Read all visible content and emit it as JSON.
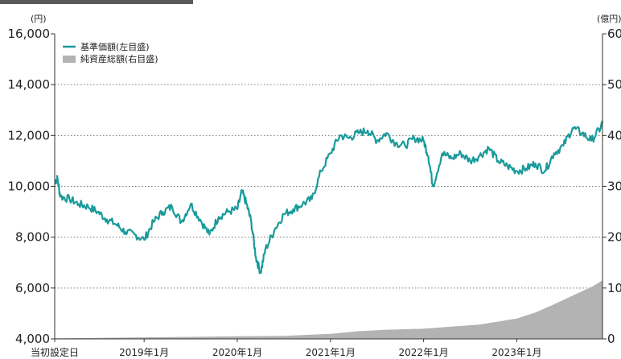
{
  "chart_data": {
    "type": "line",
    "left_axis": {
      "unit": "(円)",
      "ylim": [
        4000,
        16000
      ],
      "ticks": [
        4000,
        6000,
        8000,
        10000,
        12000,
        14000,
        16000
      ],
      "tick_labels": [
        "4,000",
        "6,000",
        "8,000",
        "10,000",
        "12,000",
        "14,000",
        "16,000"
      ]
    },
    "right_axis": {
      "unit": "(億円)",
      "ylim": [
        0,
        60
      ],
      "ticks": [
        0,
        10,
        20,
        30,
        40,
        50,
        60
      ],
      "tick_labels": [
        "0",
        "10",
        "20",
        "30",
        "40",
        "50",
        "60"
      ]
    },
    "x_tick_labels": [
      "当初設定日",
      "2019年1月",
      "2020年1月",
      "2021年1月",
      "2022年1月",
      "2023年1月"
    ],
    "x_tick_positions": [
      2018.04,
      2019.0,
      2020.0,
      2021.0,
      2022.0,
      2023.0
    ],
    "x_range": [
      2018.04,
      2023.92
    ],
    "legend": {
      "placement": "top-left",
      "entries": [
        {
          "label": "基準価額(左目盛)",
          "color": "#1a9a9a",
          "kind": "line"
        },
        {
          "label": "純資産総額(右目盛)",
          "color": "#b3b3b3",
          "kind": "area"
        }
      ]
    },
    "grid": "horizontal-dotted",
    "series": [
      {
        "name": "基準価額(左目盛)",
        "axis": "left",
        "type": "line",
        "color": "#1a9a9a",
        "x": [
          2018.04,
          2018.07,
          2018.1,
          2018.2,
          2018.3,
          2018.4,
          2018.5,
          2018.6,
          2018.7,
          2018.8,
          2018.9,
          2019.0,
          2019.1,
          2019.2,
          2019.3,
          2019.4,
          2019.5,
          2019.6,
          2019.7,
          2019.8,
          2019.9,
          2020.0,
          2020.05,
          2020.1,
          2020.15,
          2020.2,
          2020.25,
          2020.3,
          2020.4,
          2020.5,
          2020.6,
          2020.7,
          2020.8,
          2020.9,
          2021.0,
          2021.1,
          2021.2,
          2021.3,
          2021.4,
          2021.5,
          2021.6,
          2021.7,
          2021.8,
          2021.9,
          2022.0,
          2022.05,
          2022.1,
          2022.2,
          2022.3,
          2022.4,
          2022.5,
          2022.6,
          2022.7,
          2022.8,
          2022.9,
          2023.0,
          2023.1,
          2023.2,
          2023.3,
          2023.4,
          2023.5,
          2023.6,
          2023.7,
          2023.8,
          2023.9,
          2023.92
        ],
        "y": [
          10200,
          10300,
          9600,
          9500,
          9300,
          9200,
          9000,
          8700,
          8500,
          8200,
          8100,
          7900,
          8600,
          9000,
          9200,
          8600,
          9300,
          8700,
          8100,
          8800,
          9000,
          9100,
          9800,
          9300,
          8600,
          7200,
          6600,
          7500,
          8300,
          8900,
          9100,
          9300,
          9500,
          10600,
          11300,
          12000,
          11900,
          12100,
          12200,
          11800,
          12100,
          11700,
          11600,
          11900,
          11800,
          11200,
          10000,
          11300,
          11100,
          11300,
          11000,
          11200,
          11500,
          11000,
          10800,
          10600,
          10700,
          10900,
          10600,
          11300,
          11600,
          12300,
          12100,
          11800,
          12300,
          12500
        ]
      },
      {
        "name": "純資産総額(右目盛)",
        "axis": "right",
        "type": "area",
        "color": "#b3b3b3",
        "x": [
          2018.04,
          2018.5,
          2019.0,
          2019.5,
          2020.0,
          2020.5,
          2021.0,
          2021.3,
          2021.6,
          2022.0,
          2022.3,
          2022.6,
          2022.8,
          2023.0,
          2023.2,
          2023.4,
          2023.6,
          2023.8,
          2023.92
        ],
        "y": [
          0.1,
          0.2,
          0.3,
          0.4,
          0.5,
          0.6,
          1.0,
          1.5,
          1.8,
          2.0,
          2.4,
          2.8,
          3.4,
          4.0,
          5.2,
          6.8,
          8.5,
          10.2,
          11.5
        ]
      }
    ]
  }
}
